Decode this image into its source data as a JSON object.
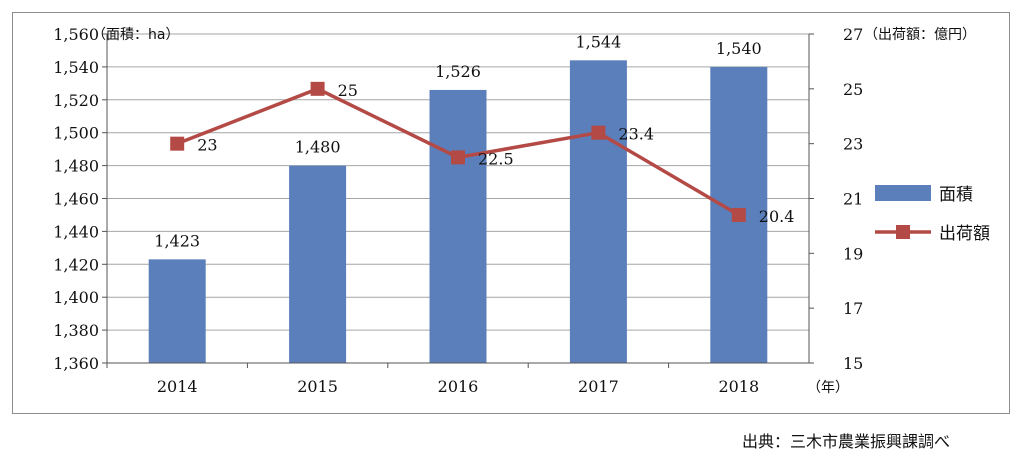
{
  "chart_data": {
    "type": "bar+line",
    "categories": [
      "2014",
      "2015",
      "2016",
      "2017",
      "2018"
    ],
    "x_unit": "（年）",
    "series": [
      {
        "name": "面積",
        "type": "bar",
        "axis": "left",
        "values": [
          1423,
          1480,
          1526,
          1544,
          1540
        ],
        "labels": [
          "1,423",
          "1,480",
          "1,526",
          "1,544",
          "1,540"
        ],
        "color": "#5b7fbb"
      },
      {
        "name": "出荷額",
        "type": "line",
        "axis": "right",
        "values": [
          23,
          25,
          22.5,
          23.4,
          20.4
        ],
        "labels": [
          "23",
          "25",
          "22.5",
          "23.4",
          "20.4"
        ],
        "color": "#b44a45"
      }
    ],
    "y_left": {
      "unit": "（面積：ha）",
      "range": [
        1360,
        1560
      ],
      "ticks": [
        "1,360",
        "1,380",
        "1,400",
        "1,420",
        "1,440",
        "1,460",
        "1,480",
        "1,500",
        "1,520",
        "1,540",
        "1,560"
      ]
    },
    "y_right": {
      "unit": "（出荷額：億円）",
      "range": [
        15,
        27
      ],
      "ticks": [
        "15",
        "17",
        "19",
        "21",
        "23",
        "25",
        "27"
      ]
    },
    "grid": "horizontal",
    "legend": "right"
  },
  "source_note": "出典：三木市農業振興課調べ"
}
